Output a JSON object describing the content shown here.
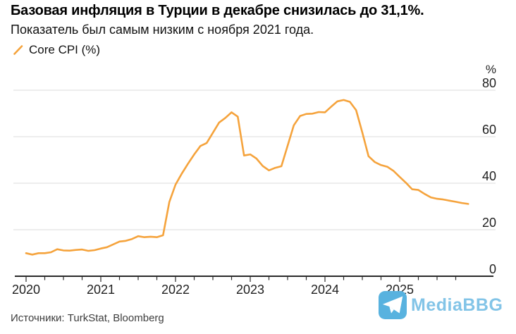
{
  "header": {
    "title": "Базовая инфляция в Турции в декабре снизилась до 31,1%.",
    "subtitle": "Показатель был самым низким с ноября 2021 года."
  },
  "legend": {
    "series_label": "Core CPI (%)"
  },
  "footer": {
    "source": "Источники: TurkStat, Bloomberg"
  },
  "watermark": {
    "text": "MediaBBG",
    "icon": "telegram-paper-plane-icon"
  },
  "colors": {
    "line": "#F5A33C",
    "grid": "#DBDBDB",
    "axis": "#2A2A2A",
    "tick_text": "#1F1F1F",
    "source_text": "#3D3D3D",
    "watermark_icon": "#58B2DF",
    "watermark_text": "#7CC1E6",
    "background": "#FFFFFF"
  },
  "chart_data": {
    "type": "line",
    "title": "Базовая инфляция в Турции в декабре снизилась до 31,1%.",
    "subtitle": "Показатель был самым низким с ноября 2021 года.",
    "xlabel": "",
    "ylabel": "",
    "y_unit": "%",
    "ylim": [
      0,
      80
    ],
    "y_ticks": [
      0,
      20,
      40,
      60,
      80
    ],
    "x_tick_labels": [
      "2020",
      "2021",
      "2022",
      "2023",
      "2024",
      "2025"
    ],
    "x_start": "Jan 2020",
    "x_end": "Dec 2025",
    "frequency": "monthly",
    "grid": "horizontal",
    "legend_position": "top-left",
    "axis_side": "right",
    "series": [
      {
        "name": "Core CPI (%)",
        "values": [
          9.9,
          9.3,
          9.9,
          9.9,
          10.3,
          11.6,
          11.1,
          11.0,
          11.3,
          11.5,
          10.9,
          11.2,
          11.9,
          12.5,
          13.7,
          14.9,
          15.2,
          16.0,
          17.2,
          16.8,
          17.0,
          16.8,
          17.6,
          31.9,
          39.4,
          44.1,
          48.4,
          52.4,
          56.0,
          57.3,
          61.7,
          66.1,
          68.1,
          70.5,
          68.6,
          51.9,
          52.4,
          50.6,
          47.4,
          45.5,
          46.6,
          47.3,
          56.1,
          64.9,
          68.9,
          69.8,
          69.9,
          70.6,
          70.5,
          72.9,
          75.2,
          75.8,
          75.0,
          71.4,
          61.8,
          51.6,
          49.1,
          47.8,
          47.1,
          45.3,
          42.7,
          40.2,
          37.4,
          37.1,
          35.4,
          33.9,
          33.3,
          33.0,
          32.5,
          32.0,
          31.5,
          31.1
        ]
      }
    ]
  }
}
